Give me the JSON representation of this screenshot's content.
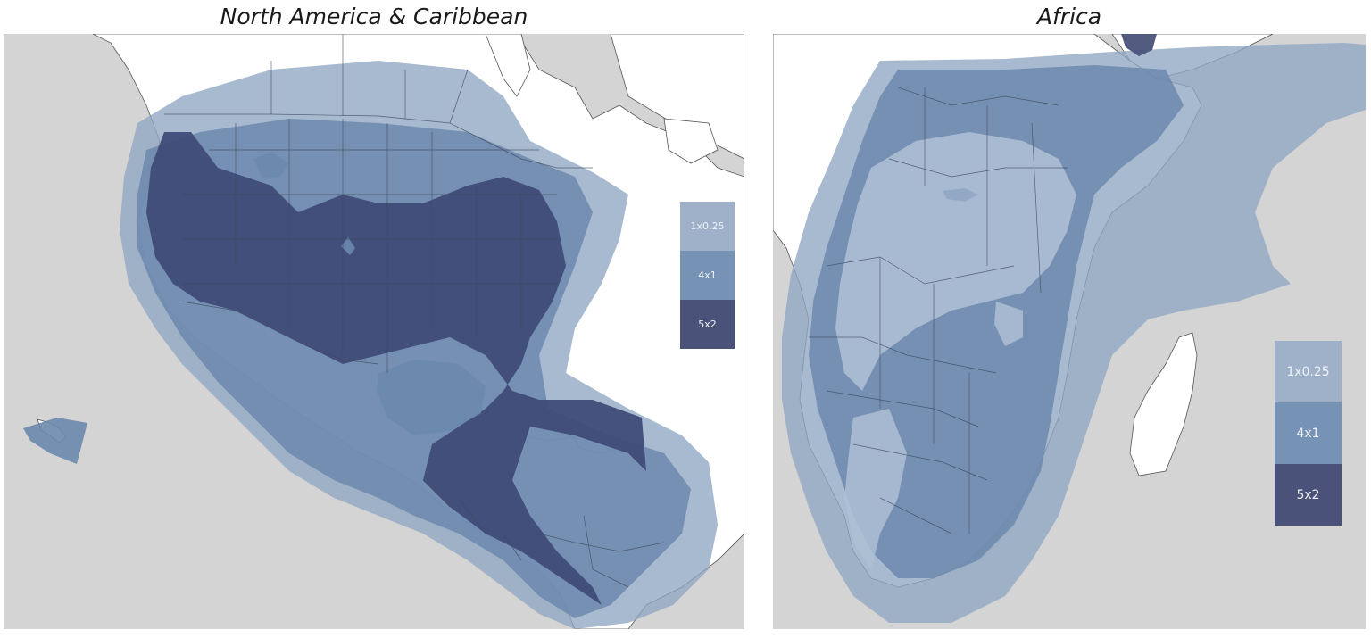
{
  "maps": [
    {
      "title": "North America & Caribbean",
      "legend": [
        {
          "label": "1x0.25",
          "color": "#9eb1c9"
        },
        {
          "label": "4x1",
          "color": "#7692b5"
        },
        {
          "label": "5x2",
          "color": "#4a5279"
        }
      ]
    },
    {
      "title": "Africa",
      "legend": [
        {
          "label": "1x0.25",
          "color": "#9eb1c9"
        },
        {
          "label": "4x1",
          "color": "#7692b5"
        },
        {
          "label": "5x2",
          "color": "#4a5279"
        }
      ]
    }
  ],
  "colors": {
    "ocean": "#d4d4d4",
    "land": "#ffffff",
    "border": "#3e4a5e",
    "coverage_outer": "#8fa6c2",
    "coverage_mid": "#6c88ad",
    "coverage_core": "#3f4c78"
  }
}
